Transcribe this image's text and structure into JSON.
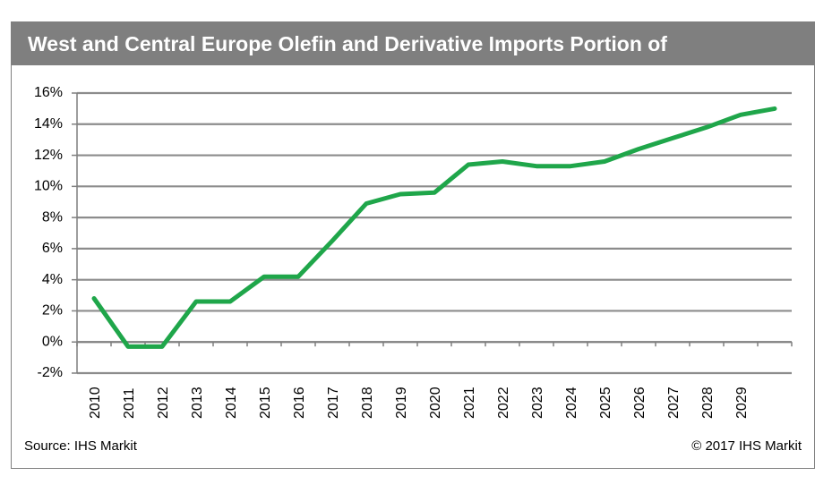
{
  "chart_data": {
    "type": "line",
    "title": "West and Central Europe Olefin and Derivative Imports Portion of",
    "xlabel": "",
    "ylabel": "",
    "source": "Source: IHS Markit",
    "copyright": "© 2017 IHS Markit",
    "x_tick_labels": [
      "2010",
      "2011",
      "2012",
      "2013",
      "2014",
      "2015",
      "2016",
      "2017",
      "2018",
      "2019",
      "2020",
      "2021",
      "2022",
      "2023",
      "2024",
      "2025",
      "2026",
      "2027",
      "2028",
      "2029"
    ],
    "ylim": [
      -2,
      16
    ],
    "y_ticks": [
      -2,
      0,
      2,
      4,
      6,
      8,
      10,
      12,
      14,
      16
    ],
    "y_tick_labels": [
      "-2%",
      "0%",
      "2%",
      "4%",
      "6%",
      "8%",
      "10%",
      "12%",
      "14%",
      "16%"
    ],
    "grid": true,
    "line_color": "#1fa64a",
    "series": [
      {
        "x": [
          2010,
          2011,
          2012,
          2013,
          2014,
          2015,
          2016,
          2017,
          2018,
          2019,
          2020,
          2021,
          2022,
          2023,
          2024,
          2025,
          2026,
          2027,
          2028,
          2029,
          2030
        ],
        "values": [
          2.8,
          -0.3,
          -0.3,
          2.6,
          2.6,
          4.2,
          4.2,
          6.5,
          8.9,
          9.5,
          9.6,
          11.4,
          11.6,
          11.3,
          11.3,
          11.6,
          12.4,
          13.1,
          13.8,
          14.6,
          15.0
        ]
      }
    ]
  }
}
